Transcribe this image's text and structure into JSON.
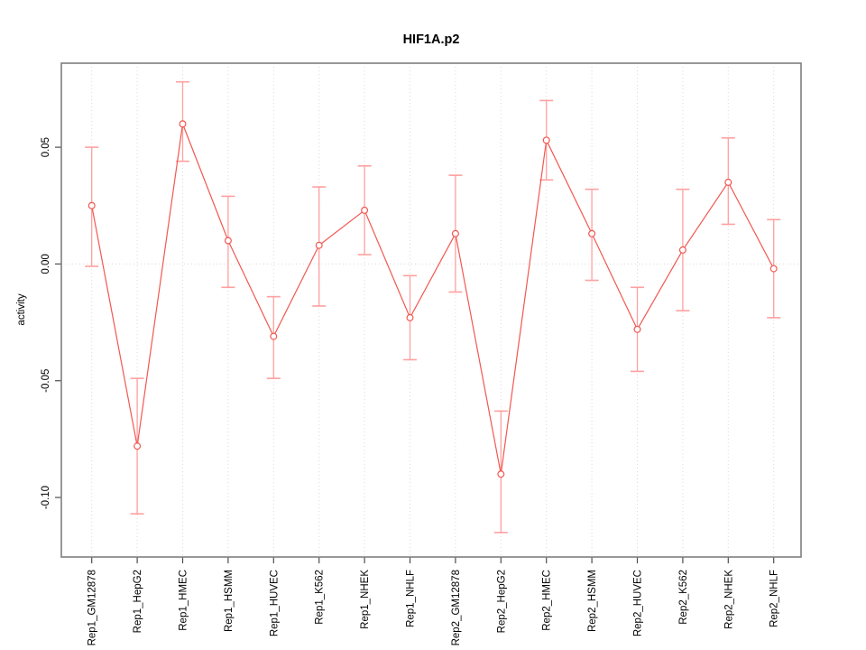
{
  "chart_data": {
    "type": "line",
    "title": "HIF1A.p2",
    "xlabel": "",
    "ylabel": "activity",
    "legend": "none",
    "grid": "vertical dotted gridline at every category; dotted horizontal line at y=0",
    "categories": [
      "Rep1_GM12878",
      "Rep1_HepG2",
      "Rep1_HMEC",
      "Rep1_HSMM",
      "Rep1_HUVEC",
      "Rep1_K562",
      "Rep1_NHEK",
      "Rep1_NHLF",
      "Rep2_GM12878",
      "Rep2_HepG2",
      "Rep2_HMEC",
      "Rep2_HSMM",
      "Rep2_HUVEC",
      "Rep2_K562",
      "Rep2_NHEK",
      "Rep2_NHLF"
    ],
    "series": [
      {
        "name": "activity",
        "values": [
          0.025,
          -0.078,
          0.06,
          0.01,
          -0.031,
          0.008,
          0.023,
          -0.023,
          0.013,
          -0.09,
          0.053,
          0.013,
          -0.028,
          0.006,
          0.035,
          -0.002
        ],
        "err_high": [
          0.05,
          -0.049,
          0.078,
          0.029,
          -0.014,
          0.033,
          0.042,
          -0.005,
          0.038,
          -0.063,
          0.07,
          0.032,
          -0.01,
          0.032,
          0.054,
          0.019
        ],
        "err_low": [
          -0.001,
          -0.107,
          0.044,
          -0.01,
          -0.049,
          -0.018,
          0.004,
          -0.041,
          -0.012,
          -0.115,
          0.036,
          -0.007,
          -0.046,
          -0.02,
          0.017,
          -0.023
        ]
      }
    ],
    "ylim": [
      -0.1255,
      0.086
    ],
    "yticks": [
      0.05,
      0.0,
      -0.05,
      -0.1
    ],
    "ytick_labels": [
      "0.05",
      "0.00",
      "-0.05",
      "-0.10"
    ],
    "colors": {
      "line": "#f25751",
      "point_stroke": "#f25751",
      "point_fill": "#ffffff",
      "error_bar": "#ffa0a0",
      "grid": "#dadada",
      "axis_tick": "#4d4d4d",
      "plot_border": "#7f7f7f",
      "text": "#000000"
    }
  }
}
